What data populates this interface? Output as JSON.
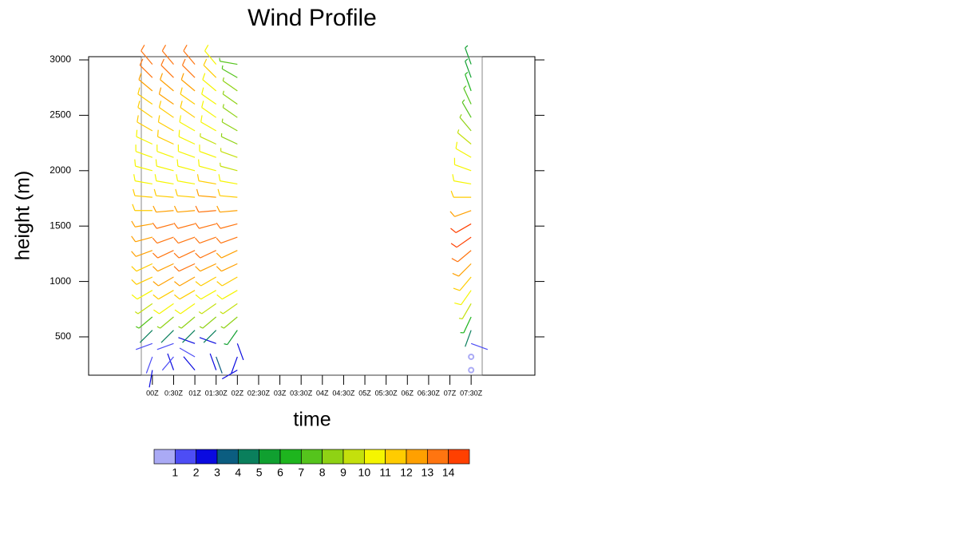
{
  "chart_data": {
    "type": "barb",
    "title": "Wind Profile",
    "xlabel": "time",
    "ylabel": "height (m)",
    "xlim": [
      -1.5,
      9
    ],
    "ylim": [
      154,
      3029
    ],
    "xticks": [
      {
        "value": 0,
        "label": "00Z"
      },
      {
        "value": 0.5,
        "label": "0:30Z"
      },
      {
        "value": 1,
        "label": "01Z"
      },
      {
        "value": 1.5,
        "label": "01:30Z"
      },
      {
        "value": 2,
        "label": "02Z"
      },
      {
        "value": 2.5,
        "label": "02:30Z"
      },
      {
        "value": 3,
        "label": "03Z"
      },
      {
        "value": 3.5,
        "label": "03:30Z"
      },
      {
        "value": 4,
        "label": "04Z"
      },
      {
        "value": 4.5,
        "label": "04:30Z"
      },
      {
        "value": 5,
        "label": "05Z"
      },
      {
        "value": 5.5,
        "label": "05:30Z"
      },
      {
        "value": 6,
        "label": "06Z"
      },
      {
        "value": 6.5,
        "label": "06:30Z"
      },
      {
        "value": 7,
        "label": "07Z"
      },
      {
        "value": 7.5,
        "label": "07:30Z"
      }
    ],
    "yticks": [
      500,
      1000,
      1500,
      2000,
      2500,
      3000
    ],
    "levels": [
      200,
      320,
      440,
      560,
      680,
      800,
      920,
      1040,
      1160,
      1280,
      1400,
      1520,
      1640,
      1760,
      1880,
      2000,
      2120,
      2240,
      2360,
      2480,
      2600,
      2720,
      2840,
      2960
    ],
    "columns": [
      {
        "x": 0,
        "speeds": [
          2,
          1,
          1,
          4,
          7,
          9,
          10,
          11,
          11,
          12,
          12,
          12,
          11,
          11,
          10,
          10,
          10,
          10,
          11,
          11,
          11,
          12,
          13,
          13
        ],
        "directions": [
          190,
          200,
          250,
          225,
          230,
          235,
          240,
          245,
          245,
          250,
          255,
          260,
          270,
          275,
          280,
          285,
          290,
          295,
          300,
          305,
          305,
          310,
          315,
          320
        ]
      },
      {
        "x": 0.5,
        "speeds": [
          2,
          1,
          1,
          4,
          8,
          10,
          11,
          12,
          12,
          13,
          13,
          13,
          12,
          11,
          10,
          10,
          10,
          11,
          11,
          11,
          12,
          12,
          13,
          13
        ],
        "directions": [
          340,
          220,
          250,
          225,
          230,
          235,
          240,
          240,
          245,
          245,
          250,
          255,
          265,
          275,
          280,
          285,
          290,
          295,
          300,
          305,
          305,
          310,
          315,
          320
        ]
      },
      {
        "x": 1,
        "speeds": [
          2,
          1,
          2,
          4,
          8,
          10,
          11,
          12,
          13,
          13,
          13,
          13,
          12,
          11,
          10,
          10,
          10,
          10,
          10,
          11,
          11,
          12,
          13,
          13
        ],
        "directions": [
          320,
          300,
          290,
          225,
          230,
          235,
          240,
          240,
          245,
          245,
          250,
          255,
          265,
          275,
          280,
          285,
          290,
          295,
          300,
          305,
          305,
          310,
          315,
          320
        ]
      },
      {
        "x": 1.5,
        "speeds": [
          2,
          3,
          2,
          4,
          8,
          9,
          10,
          11,
          12,
          13,
          13,
          13,
          13,
          12,
          11,
          10,
          10,
          9,
          10,
          10,
          10,
          10,
          11,
          10
        ],
        "directions": [
          340,
          160,
          290,
          225,
          230,
          235,
          240,
          240,
          245,
          245,
          250,
          255,
          265,
          275,
          280,
          285,
          290,
          295,
          300,
          305,
          305,
          310,
          315,
          320
        ]
      },
      {
        "x": 2,
        "speeds": [
          2,
          2,
          2,
          5,
          8,
          9,
          10,
          11,
          12,
          12,
          13,
          13,
          12,
          11,
          10,
          9,
          9,
          8,
          8,
          8,
          8,
          8,
          7,
          7
        ],
        "directions": [
          240,
          200,
          160,
          215,
          230,
          235,
          240,
          240,
          245,
          245,
          250,
          255,
          265,
          275,
          280,
          285,
          290,
          295,
          300,
          305,
          305,
          305,
          300,
          280
        ]
      },
      {
        "x": 7.5,
        "speeds": [
          0,
          0,
          1,
          4,
          6,
          9,
          10,
          11,
          12,
          13,
          14,
          14,
          12,
          11,
          10,
          10,
          10,
          9,
          8,
          7,
          7,
          6,
          5,
          5
        ],
        "directions": [
          0,
          0,
          110,
          200,
          205,
          210,
          215,
          220,
          225,
          230,
          235,
          240,
          250,
          270,
          280,
          290,
          300,
          310,
          320,
          330,
          335,
          340,
          340,
          340
        ]
      }
    ],
    "colorbar": {
      "labels": [
        1,
        2,
        3,
        4,
        5,
        6,
        7,
        8,
        9,
        10,
        11,
        12,
        13,
        14
      ],
      "colors": [
        "#aaaaf5",
        "#4d4df5",
        "#0a0ae0",
        "#0b5d80",
        "#0a7f5c",
        "#10a030",
        "#1eb51e",
        "#55c41c",
        "#8fd214",
        "#c4e00c",
        "#f5f500",
        "#ffcc00",
        "#ffa000",
        "#ff7510",
        "#ff4000"
      ]
    }
  }
}
